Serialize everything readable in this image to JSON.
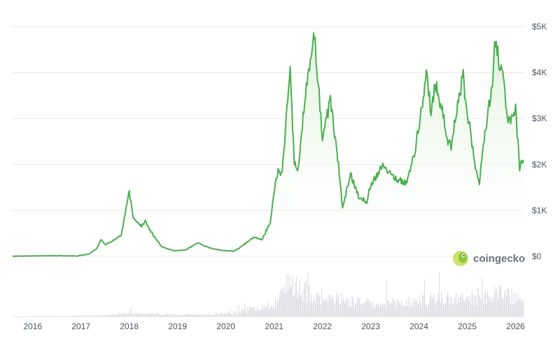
{
  "chart_data": {
    "type": "area",
    "title": "",
    "xlabel": "",
    "ylabel": "",
    "x_ticks": [
      "2016",
      "2017",
      "2018",
      "2019",
      "2020",
      "2021",
      "2022",
      "2023",
      "2024",
      "2025",
      "2026"
    ],
    "y_ticks": [
      "$0",
      "$1K",
      "$2K",
      "$3K",
      "$4K",
      "$5K"
    ],
    "ylim": [
      0,
      5000
    ],
    "xlim": [
      "2015-08",
      "2026-03"
    ],
    "grid": true,
    "series": [
      {
        "values_unit": "USD",
        "points": [
          [
            "2015-08",
            3
          ],
          [
            "2016-03",
            11
          ],
          [
            "2016-06",
            14
          ],
          [
            "2016-12",
            8
          ],
          [
            "2017-03",
            50
          ],
          [
            "2017-05",
            180
          ],
          [
            "2017-06",
            380
          ],
          [
            "2017-07",
            250
          ],
          [
            "2017-09",
            350
          ],
          [
            "2017-11",
            450
          ],
          [
            "2018-01",
            1400
          ],
          [
            "2018-02",
            850
          ],
          [
            "2018-04",
            650
          ],
          [
            "2018-05",
            750
          ],
          [
            "2018-07",
            450
          ],
          [
            "2018-09",
            220
          ],
          [
            "2018-12",
            120
          ],
          [
            "2019-03",
            140
          ],
          [
            "2019-06",
            290
          ],
          [
            "2019-09",
            180
          ],
          [
            "2019-12",
            130
          ],
          [
            "2020-03",
            110
          ],
          [
            "2020-05",
            220
          ],
          [
            "2020-08",
            420
          ],
          [
            "2020-10",
            370
          ],
          [
            "2020-12",
            730
          ],
          [
            "2021-01",
            1400
          ],
          [
            "2021-02",
            1900
          ],
          [
            "2021-03",
            1800
          ],
          [
            "2021-05",
            4100
          ],
          [
            "2021-06",
            2000
          ],
          [
            "2021-07",
            1900
          ],
          [
            "2021-09",
            3800
          ],
          [
            "2021-11",
            4800
          ],
          [
            "2021-12",
            3700
          ],
          [
            "2022-01",
            2600
          ],
          [
            "2022-03",
            3400
          ],
          [
            "2022-05",
            2000
          ],
          [
            "2022-06",
            1050
          ],
          [
            "2022-08",
            1800
          ],
          [
            "2022-10",
            1300
          ],
          [
            "2022-12",
            1200
          ],
          [
            "2023-01",
            1550
          ],
          [
            "2023-04",
            2000
          ],
          [
            "2023-06",
            1800
          ],
          [
            "2023-08",
            1650
          ],
          [
            "2023-10",
            1600
          ],
          [
            "2023-12",
            2300
          ],
          [
            "2024-03",
            4000
          ],
          [
            "2024-04",
            3100
          ],
          [
            "2024-05",
            3800
          ],
          [
            "2024-07",
            3100
          ],
          [
            "2024-08",
            2500
          ],
          [
            "2024-09",
            2400
          ],
          [
            "2024-11",
            3500
          ],
          [
            "2024-12",
            3900
          ],
          [
            "2025-01",
            3100
          ],
          [
            "2025-02",
            2600
          ],
          [
            "2025-03",
            1900
          ],
          [
            "2025-04",
            1550
          ],
          [
            "2025-05",
            2500
          ],
          [
            "2025-07",
            3600
          ],
          [
            "2025-08",
            4700
          ],
          [
            "2025-09",
            4200
          ],
          [
            "2025-10",
            3900
          ],
          [
            "2025-11",
            2900
          ],
          [
            "2025-12",
            3000
          ],
          [
            "2026-01",
            3200
          ],
          [
            "2026-02",
            1950
          ],
          [
            "2026-03",
            2100
          ]
        ]
      }
    ],
    "volume": {
      "description_unit": "relative",
      "points": [
        [
          "2015-08",
          0.002
        ],
        [
          "2017-06",
          0.03
        ],
        [
          "2018-01",
          0.08
        ],
        [
          "2019-06",
          0.05
        ],
        [
          "2020-03",
          0.1
        ],
        [
          "2021-01",
          0.35
        ],
        [
          "2021-05",
          0.95
        ],
        [
          "2021-11",
          0.55
        ],
        [
          "2022-06",
          0.45
        ],
        [
          "2023-03",
          0.3
        ],
        [
          "2024-03",
          0.45
        ],
        [
          "2024-08",
          0.5
        ],
        [
          "2025-02",
          0.4
        ],
        [
          "2025-08",
          0.65
        ],
        [
          "2026-02",
          0.45
        ],
        [
          "2026-03",
          0.3
        ]
      ]
    }
  },
  "watermark": {
    "text": "coingecko",
    "icon": "coingecko-logo-icon"
  },
  "colors": {
    "line": "#4caf50",
    "area_top": "#d7f0d2",
    "grid": "#e8e8e8",
    "volume": "#d9d9e1"
  }
}
